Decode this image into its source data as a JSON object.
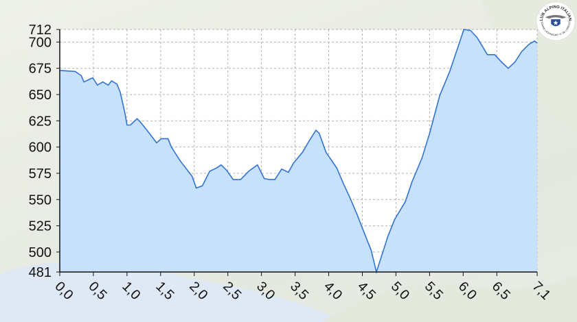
{
  "logo": {
    "name": "club-alpino-italiano-logo",
    "text_top": "CLUB ALPINO ITALIANO",
    "text_bottom": "SEZIONE LAGONEGRO \"G. DE LORENZO\""
  },
  "chart_data": {
    "type": "area",
    "title": "",
    "xlabel": "",
    "ylabel": "",
    "xlim": [
      0,
      7.1
    ],
    "ylim": [
      481,
      712
    ],
    "grid": true,
    "x_ticks": [
      "0,0",
      "0,5",
      "1,0",
      "1,5",
      "2,0",
      "2,5",
      "3,0",
      "3,5",
      "4,0",
      "4,5",
      "5,0",
      "5,5",
      "6,0",
      "6,5",
      "7,1"
    ],
    "x_tick_values": [
      0,
      0.5,
      1,
      1.5,
      2,
      2.5,
      3,
      3.5,
      4,
      4.5,
      5,
      5.5,
      6,
      6.5,
      7.1
    ],
    "y_ticks": [
      712,
      700,
      675,
      650,
      625,
      600,
      575,
      550,
      525,
      500,
      481
    ],
    "colors": {
      "line": "#2f73d4",
      "fill": "#c7e0fb",
      "plot_bg": "#ffffff",
      "grid": "#b0b0b0"
    },
    "points": [
      [
        0.0,
        673
      ],
      [
        0.23,
        672
      ],
      [
        0.32,
        668
      ],
      [
        0.36,
        662
      ],
      [
        0.49,
        666
      ],
      [
        0.56,
        659
      ],
      [
        0.64,
        662
      ],
      [
        0.72,
        659
      ],
      [
        0.77,
        663
      ],
      [
        0.85,
        660
      ],
      [
        0.9,
        652
      ],
      [
        0.97,
        632
      ],
      [
        1.0,
        621
      ],
      [
        1.05,
        621
      ],
      [
        1.15,
        627
      ],
      [
        1.21,
        623
      ],
      [
        1.31,
        615
      ],
      [
        1.44,
        604
      ],
      [
        1.51,
        608
      ],
      [
        1.61,
        608
      ],
      [
        1.66,
        600
      ],
      [
        1.79,
        587
      ],
      [
        1.97,
        572
      ],
      [
        2.03,
        561
      ],
      [
        2.12,
        563
      ],
      [
        2.23,
        577
      ],
      [
        2.33,
        580
      ],
      [
        2.4,
        583
      ],
      [
        2.48,
        578
      ],
      [
        2.58,
        569
      ],
      [
        2.69,
        569
      ],
      [
        2.81,
        577
      ],
      [
        2.94,
        583
      ],
      [
        3.04,
        570
      ],
      [
        3.12,
        569
      ],
      [
        3.2,
        569
      ],
      [
        3.3,
        579
      ],
      [
        3.4,
        576
      ],
      [
        3.48,
        585
      ],
      [
        3.61,
        595
      ],
      [
        3.71,
        606
      ],
      [
        3.81,
        616
      ],
      [
        3.86,
        613
      ],
      [
        3.96,
        595
      ],
      [
        4.12,
        580
      ],
      [
        4.22,
        565
      ],
      [
        4.32,
        551
      ],
      [
        4.42,
        536
      ],
      [
        4.53,
        518
      ],
      [
        4.63,
        502
      ],
      [
        4.71,
        481
      ],
      [
        4.78,
        495
      ],
      [
        4.88,
        515
      ],
      [
        4.98,
        531
      ],
      [
        5.14,
        548
      ],
      [
        5.24,
        567
      ],
      [
        5.39,
        590
      ],
      [
        5.5,
        613
      ],
      [
        5.65,
        649
      ],
      [
        5.8,
        672
      ],
      [
        5.9,
        691
      ],
      [
        6.01,
        712
      ],
      [
        6.11,
        711
      ],
      [
        6.21,
        704
      ],
      [
        6.36,
        688
      ],
      [
        6.47,
        688
      ],
      [
        6.57,
        681
      ],
      [
        6.67,
        675
      ],
      [
        6.77,
        681
      ],
      [
        6.87,
        691
      ],
      [
        6.98,
        698
      ],
      [
        7.06,
        701
      ],
      [
        7.1,
        699
      ]
    ]
  }
}
